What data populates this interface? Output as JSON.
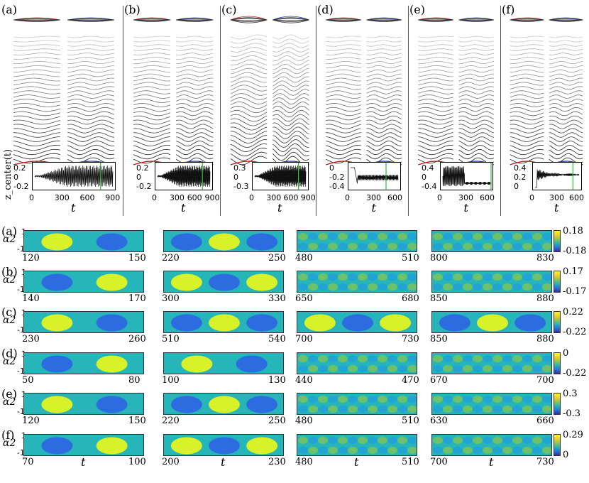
{
  "top_panels": {
    "labels": [
      "(a)",
      "(b)",
      "(c)",
      "(d)",
      "(e)",
      "(f)"
    ],
    "ylabel": "z_center(t)",
    "xlabel": "t",
    "x_ticks": [
      [
        "0",
        "300",
        "600",
        "900"
      ],
      [
        "0",
        "300",
        "600",
        "900"
      ],
      [
        "0",
        "300",
        "600",
        "900"
      ],
      [
        "0",
        "300",
        "600"
      ],
      [
        "0",
        "300",
        "600"
      ],
      [
        "0",
        "300",
        "600"
      ]
    ],
    "y_ticks": [
      [
        "0.2",
        "0",
        "-0.2"
      ],
      [
        "0.2",
        "0",
        "-0.2"
      ],
      [
        "0.3",
        "0",
        "-0.3"
      ],
      [
        "0",
        "-0.2",
        "-0.4"
      ],
      [
        "0.4",
        "0",
        "-0.4"
      ],
      [
        "0.4",
        "0.2",
        "0"
      ]
    ]
  },
  "heatmaps": {
    "ylabel": "α2",
    "xlabel": "t",
    "y_ticks": [
      "1",
      "-1"
    ],
    "rows": [
      {
        "label": "(a)",
        "cb_max": "0.18",
        "cb_min": "-0.18",
        "ranges": [
          [
            "120",
            "150"
          ],
          [
            "220",
            "250"
          ],
          [
            "480",
            "510"
          ],
          [
            "800",
            "830"
          ]
        ]
      },
      {
        "label": "(b)",
        "cb_max": "0.17",
        "cb_min": "-0.17",
        "ranges": [
          [
            "140",
            "170"
          ],
          [
            "300",
            "330"
          ],
          [
            "650",
            "680"
          ],
          [
            "850",
            "880"
          ]
        ]
      },
      {
        "label": "(c)",
        "cb_max": "0.22",
        "cb_min": "-0.22",
        "ranges": [
          [
            "230",
            "260"
          ],
          [
            "510",
            "540"
          ],
          [
            "700",
            "730"
          ],
          [
            "850",
            "880"
          ]
        ]
      },
      {
        "label": "(d)",
        "cb_max": "0",
        "cb_min": "-0.22",
        "ranges": [
          [
            "50",
            "80"
          ],
          [
            "100",
            "130"
          ],
          [
            "440",
            "470"
          ],
          [
            "670",
            "700"
          ]
        ]
      },
      {
        "label": "(e)",
        "cb_max": "0.3",
        "cb_min": "-0.3",
        "ranges": [
          [
            "120",
            "150"
          ],
          [
            "220",
            "250"
          ],
          [
            "480",
            "510"
          ],
          [
            "630",
            "660"
          ]
        ]
      },
      {
        "label": "(f)",
        "cb_max": "0.29",
        "cb_min": "0",
        "ranges": [
          [
            "70",
            "100"
          ],
          [
            "200",
            "230"
          ],
          [
            "480",
            "510"
          ],
          [
            "700",
            "730"
          ]
        ]
      }
    ]
  },
  "colors": {
    "red": "#cc1111",
    "blue": "#1a2fcc",
    "green": "#2fbf2f"
  }
}
